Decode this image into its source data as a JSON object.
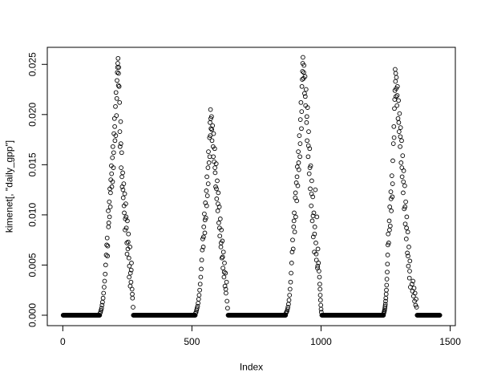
{
  "window": {
    "background": "#ffffff"
  },
  "chart_data": {
    "type": "scatter",
    "title": "",
    "xlabel": "Index",
    "ylabel": "kimenet[, \"daily_gpp\"]",
    "marker": "open-circle",
    "marker_color": "#000000",
    "grid": false,
    "legend_position": "none",
    "x_ticks": [
      0,
      500,
      1000,
      1500
    ],
    "x_tick_labels": [
      "0",
      "500",
      "1000",
      "1500"
    ],
    "y_ticks": [
      0,
      0.005,
      0.01,
      0.015,
      0.02,
      0.025
    ],
    "y_tick_labels": [
      "0.000",
      "0.005",
      "0.010",
      "0.015",
      "0.020",
      "0.025"
    ],
    "xlim": [
      -60,
      1520
    ],
    "ylim": [
      -0.00104,
      0.0267
    ],
    "zero_runs": [
      [
        1,
        143
      ],
      [
        273,
        513
      ],
      [
        640,
        863
      ],
      [
        1003,
        1242
      ],
      [
        1372,
        1460
      ]
    ],
    "points": [
      [
        144,
        0.0002
      ],
      [
        146,
        0.0003
      ],
      [
        148,
        0.0005
      ],
      [
        150,
        0.0007
      ],
      [
        152,
        0.001
      ],
      [
        154,
        0.0013
      ],
      [
        156,
        0.0017
      ],
      [
        158,
        0.0022
      ],
      [
        160,
        0.0028
      ],
      [
        162,
        0.0034
      ],
      [
        164,
        0.0041
      ],
      [
        166,
        0.005
      ],
      [
        168,
        0.006
      ],
      [
        170,
        0.007
      ],
      [
        172,
        0.0077
      ],
      [
        173,
        0.0059
      ],
      [
        174,
        0.0069
      ],
      [
        176,
        0.0104
      ],
      [
        177,
        0.0088
      ],
      [
        178,
        0.0092
      ],
      [
        180,
        0.0113
      ],
      [
        181,
        0.0098
      ],
      [
        182,
        0.0126
      ],
      [
        184,
        0.0108
      ],
      [
        185,
        0.0122
      ],
      [
        186,
        0.0135
      ],
      [
        188,
        0.0149
      ],
      [
        189,
        0.0141
      ],
      [
        190,
        0.0128
      ],
      [
        192,
        0.0157
      ],
      [
        193,
        0.0133
      ],
      [
        194,
        0.0168
      ],
      [
        196,
        0.0147
      ],
      [
        197,
        0.0162
      ],
      [
        198,
        0.0181
      ],
      [
        200,
        0.0196
      ],
      [
        201,
        0.0188
      ],
      [
        202,
        0.0174
      ],
      [
        204,
        0.0208
      ],
      [
        205,
        0.0179
      ],
      [
        206,
        0.0222
      ],
      [
        208,
        0.0199
      ],
      [
        209,
        0.0216
      ],
      [
        210,
        0.0234
      ],
      [
        211,
        0.0242
      ],
      [
        212,
        0.0247
      ],
      [
        213,
        0.0251
      ],
      [
        214,
        0.0256
      ],
      [
        215,
        0.0229
      ],
      [
        216,
        0.0241
      ],
      [
        217,
        0.0247
      ],
      [
        218,
        0.0228
      ],
      [
        220,
        0.0212
      ],
      [
        221,
        0.0183
      ],
      [
        222,
        0.0168
      ],
      [
        224,
        0.0193
      ],
      [
        225,
        0.0171
      ],
      [
        226,
        0.0147
      ],
      [
        228,
        0.0162
      ],
      [
        229,
        0.0138
      ],
      [
        230,
        0.0128
      ],
      [
        232,
        0.0142
      ],
      [
        233,
        0.0125
      ],
      [
        234,
        0.0117
      ],
      [
        236,
        0.0131
      ],
      [
        237,
        0.0109
      ],
      [
        238,
        0.0102
      ],
      [
        240,
        0.0121
      ],
      [
        241,
        0.0085
      ],
      [
        242,
        0.0096
      ],
      [
        244,
        0.0111
      ],
      [
        245,
        0.0098
      ],
      [
        246,
        0.0087
      ],
      [
        248,
        0.0072
      ],
      [
        249,
        0.0061
      ],
      [
        250,
        0.0094
      ],
      [
        252,
        0.0066
      ],
      [
        253,
        0.0073
      ],
      [
        254,
        0.0081
      ],
      [
        256,
        0.0057
      ],
      [
        257,
        0.0038
      ],
      [
        258,
        0.0049
      ],
      [
        260,
        0.0068
      ],
      [
        261,
        0.0029
      ],
      [
        262,
        0.0042
      ],
      [
        264,
        0.0033
      ],
      [
        265,
        0.0045
      ],
      [
        266,
        0.0052
      ],
      [
        268,
        0.0026
      ],
      [
        269,
        0.0021
      ],
      [
        270,
        0.0017
      ],
      [
        272,
        0.0008
      ],
      [
        514,
        0.0002
      ],
      [
        516,
        0.0003
      ],
      [
        518,
        0.0005
      ],
      [
        520,
        0.0007
      ],
      [
        522,
        0.0009
      ],
      [
        524,
        0.0012
      ],
      [
        526,
        0.0016
      ],
      [
        528,
        0.002
      ],
      [
        530,
        0.0025
      ],
      [
        532,
        0.0031
      ],
      [
        534,
        0.0038
      ],
      [
        536,
        0.0046
      ],
      [
        538,
        0.0055
      ],
      [
        540,
        0.0065
      ],
      [
        542,
        0.0076
      ],
      [
        544,
        0.0068
      ],
      [
        545,
        0.0078
      ],
      [
        546,
        0.0088
      ],
      [
        548,
        0.0101
      ],
      [
        550,
        0.0082
      ],
      [
        551,
        0.0095
      ],
      [
        552,
        0.0112
      ],
      [
        554,
        0.0097
      ],
      [
        556,
        0.0124
      ],
      [
        557,
        0.0109
      ],
      [
        558,
        0.0138
      ],
      [
        560,
        0.0119
      ],
      [
        562,
        0.0147
      ],
      [
        563,
        0.0131
      ],
      [
        564,
        0.0163
      ],
      [
        566,
        0.0152
      ],
      [
        568,
        0.0177
      ],
      [
        569,
        0.0158
      ],
      [
        570,
        0.0192
      ],
      [
        571,
        0.0179
      ],
      [
        572,
        0.0205
      ],
      [
        573,
        0.0196
      ],
      [
        574,
        0.0186
      ],
      [
        576,
        0.0198
      ],
      [
        577,
        0.0185
      ],
      [
        578,
        0.0174
      ],
      [
        580,
        0.0189
      ],
      [
        582,
        0.0168
      ],
      [
        583,
        0.0158
      ],
      [
        584,
        0.0181
      ],
      [
        586,
        0.0153
      ],
      [
        588,
        0.0166
      ],
      [
        589,
        0.0147
      ],
      [
        590,
        0.0142
      ],
      [
        592,
        0.0128
      ],
      [
        594,
        0.0151
      ],
      [
        595,
        0.0126
      ],
      [
        596,
        0.0116
      ],
      [
        598,
        0.0134
      ],
      [
        600,
        0.0104
      ],
      [
        601,
        0.0111
      ],
      [
        602,
        0.0122
      ],
      [
        604,
        0.0092
      ],
      [
        606,
        0.0108
      ],
      [
        607,
        0.0087
      ],
      [
        608,
        0.0079
      ],
      [
        610,
        0.0096
      ],
      [
        612,
        0.0068
      ],
      [
        613,
        0.0072
      ],
      [
        614,
        0.0085
      ],
      [
        616,
        0.0057
      ],
      [
        618,
        0.0074
      ],
      [
        619,
        0.0058
      ],
      [
        620,
        0.0047
      ],
      [
        622,
        0.0063
      ],
      [
        624,
        0.0038
      ],
      [
        625,
        0.0043
      ],
      [
        626,
        0.0052
      ],
      [
        628,
        0.0029
      ],
      [
        630,
        0.0042
      ],
      [
        631,
        0.0026
      ],
      [
        632,
        0.0022
      ],
      [
        634,
        0.0033
      ],
      [
        636,
        0.0014
      ],
      [
        638,
        0.0007
      ],
      [
        864,
        0.0002
      ],
      [
        866,
        0.0003
      ],
      [
        868,
        0.0004
      ],
      [
        870,
        0.0006
      ],
      [
        872,
        0.0008
      ],
      [
        874,
        0.0011
      ],
      [
        876,
        0.0015
      ],
      [
        878,
        0.002
      ],
      [
        880,
        0.0026
      ],
      [
        882,
        0.0033
      ],
      [
        884,
        0.0042
      ],
      [
        886,
        0.0052
      ],
      [
        888,
        0.0063
      ],
      [
        890,
        0.0075
      ],
      [
        892,
        0.0066
      ],
      [
        894,
        0.0088
      ],
      [
        895,
        0.0094
      ],
      [
        896,
        0.0102
      ],
      [
        898,
        0.0083
      ],
      [
        900,
        0.0117
      ],
      [
        901,
        0.0122
      ],
      [
        902,
        0.0098
      ],
      [
        904,
        0.0132
      ],
      [
        906,
        0.0114
      ],
      [
        907,
        0.0138
      ],
      [
        908,
        0.0148
      ],
      [
        910,
        0.0129
      ],
      [
        912,
        0.0163
      ],
      [
        913,
        0.0152
      ],
      [
        914,
        0.0145
      ],
      [
        916,
        0.0179
      ],
      [
        918,
        0.0158
      ],
      [
        919,
        0.0171
      ],
      [
        920,
        0.0195
      ],
      [
        922,
        0.0212
      ],
      [
        924,
        0.0186
      ],
      [
        925,
        0.0203
      ],
      [
        926,
        0.0228
      ],
      [
        927,
        0.0235
      ],
      [
        928,
        0.0243
      ],
      [
        929,
        0.0251
      ],
      [
        930,
        0.0257
      ],
      [
        932,
        0.0236
      ],
      [
        933,
        0.0242
      ],
      [
        934,
        0.0249
      ],
      [
        936,
        0.0221
      ],
      [
        938,
        0.0238
      ],
      [
        939,
        0.0218
      ],
      [
        940,
        0.0209
      ],
      [
        942,
        0.0225
      ],
      [
        944,
        0.0192
      ],
      [
        945,
        0.0198
      ],
      [
        946,
        0.0174
      ],
      [
        948,
        0.0207
      ],
      [
        950,
        0.0158
      ],
      [
        951,
        0.0169
      ],
      [
        952,
        0.0183
      ],
      [
        954,
        0.0141
      ],
      [
        956,
        0.0166
      ],
      [
        957,
        0.0147
      ],
      [
        958,
        0.0126
      ],
      [
        960,
        0.0149
      ],
      [
        962,
        0.0109
      ],
      [
        963,
        0.0121
      ],
      [
        964,
        0.0134
      ],
      [
        966,
        0.0094
      ],
      [
        968,
        0.0118
      ],
      [
        969,
        0.0099
      ],
      [
        970,
        0.0078
      ],
      [
        972,
        0.0102
      ],
      [
        974,
        0.0063
      ],
      [
        975,
        0.0081
      ],
      [
        976,
        0.0088
      ],
      [
        978,
        0.0125
      ],
      [
        980,
        0.0072
      ],
      [
        981,
        0.0061
      ],
      [
        982,
        0.0055
      ],
      [
        984,
        0.0098
      ],
      [
        986,
        0.0047
      ],
      [
        987,
        0.0049
      ],
      [
        988,
        0.0066
      ],
      [
        990,
        0.0052
      ],
      [
        992,
        0.0044
      ],
      [
        994,
        0.0038
      ],
      [
        995,
        0.0031
      ],
      [
        996,
        0.0026
      ],
      [
        997,
        0.002
      ],
      [
        998,
        0.0015
      ],
      [
        999,
        0.001
      ],
      [
        1000,
        0.0006
      ],
      [
        1001,
        0.0003
      ],
      [
        1243,
        0.0002
      ],
      [
        1244,
        0.0003
      ],
      [
        1245,
        0.0004
      ],
      [
        1246,
        0.0005
      ],
      [
        1247,
        0.0007
      ],
      [
        1248,
        0.0009
      ],
      [
        1249,
        0.0011
      ],
      [
        1250,
        0.0014
      ],
      [
        1251,
        0.0017
      ],
      [
        1252,
        0.0021
      ],
      [
        1253,
        0.0025
      ],
      [
        1254,
        0.003
      ],
      [
        1255,
        0.0036
      ],
      [
        1256,
        0.0043
      ],
      [
        1257,
        0.0051
      ],
      [
        1258,
        0.006
      ],
      [
        1259,
        0.007
      ],
      [
        1260,
        0.0081
      ],
      [
        1262,
        0.0072
      ],
      [
        1264,
        0.0094
      ],
      [
        1265,
        0.0085
      ],
      [
        1266,
        0.0108
      ],
      [
        1268,
        0.0089
      ],
      [
        1270,
        0.0123
      ],
      [
        1271,
        0.0116
      ],
      [
        1272,
        0.0104
      ],
      [
        1274,
        0.0139
      ],
      [
        1276,
        0.0118
      ],
      [
        1277,
        0.0131
      ],
      [
        1278,
        0.0154
      ],
      [
        1280,
        0.0171
      ],
      [
        1282,
        0.0188
      ],
      [
        1283,
        0.0177
      ],
      [
        1284,
        0.0206
      ],
      [
        1285,
        0.0215
      ],
      [
        1286,
        0.0224
      ],
      [
        1287,
        0.0245
      ],
      [
        1288,
        0.0233
      ],
      [
        1289,
        0.0241
      ],
      [
        1290,
        0.0218
      ],
      [
        1291,
        0.0226
      ],
      [
        1292,
        0.0237
      ],
      [
        1294,
        0.0209
      ],
      [
        1295,
        0.0219
      ],
      [
        1296,
        0.0228
      ],
      [
        1298,
        0.0196
      ],
      [
        1300,
        0.0214
      ],
      [
        1301,
        0.0192
      ],
      [
        1302,
        0.0183
      ],
      [
        1304,
        0.0201
      ],
      [
        1306,
        0.0168
      ],
      [
        1307,
        0.0178
      ],
      [
        1308,
        0.0187
      ],
      [
        1310,
        0.0152
      ],
      [
        1312,
        0.0174
      ],
      [
        1313,
        0.0147
      ],
      [
        1314,
        0.0138
      ],
      [
        1316,
        0.0159
      ],
      [
        1318,
        0.0122
      ],
      [
        1319,
        0.0133
      ],
      [
        1320,
        0.0144
      ],
      [
        1322,
        0.0106
      ],
      [
        1324,
        0.0129
      ],
      [
        1325,
        0.0108
      ],
      [
        1326,
        0.0091
      ],
      [
        1328,
        0.0113
      ],
      [
        1330,
        0.0076
      ],
      [
        1331,
        0.0087
      ],
      [
        1332,
        0.0098
      ],
      [
        1334,
        0.0062
      ],
      [
        1336,
        0.0083
      ],
      [
        1337,
        0.0059
      ],
      [
        1338,
        0.0049
      ],
      [
        1340,
        0.0068
      ],
      [
        1342,
        0.0037
      ],
      [
        1343,
        0.0044
      ],
      [
        1344,
        0.0054
      ],
      [
        1346,
        0.0028
      ],
      [
        1352,
        0.0031
      ],
      [
        1354,
        0.0024
      ],
      [
        1356,
        0.0034
      ],
      [
        1358,
        0.0019
      ],
      [
        1360,
        0.0027
      ],
      [
        1362,
        0.0014
      ],
      [
        1364,
        0.0022
      ],
      [
        1366,
        0.001
      ],
      [
        1368,
        0.0016
      ],
      [
        1370,
        0.0008
      ]
    ]
  }
}
